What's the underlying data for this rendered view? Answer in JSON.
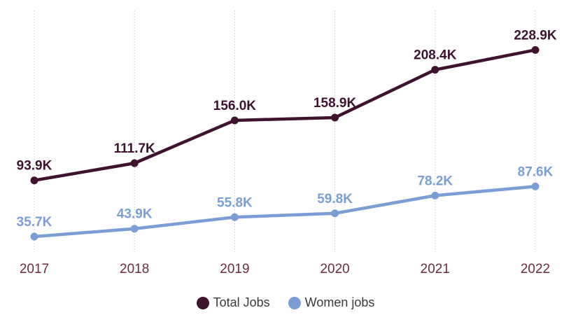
{
  "chart_data": {
    "type": "line",
    "title": "",
    "xlabel": "",
    "ylabel": "",
    "categories": [
      "2017",
      "2018",
      "2019",
      "2020",
      "2021",
      "2022"
    ],
    "ylim": [
      0,
      250000
    ],
    "grid": "vertical dotted lines at each category",
    "legend_position": "bottom-center",
    "series": [
      {
        "name": "Total Jobs",
        "color": "#3f1230",
        "values": [
          93900,
          111700,
          156000,
          158900,
          208400,
          228900
        ],
        "labels": [
          "93.9K",
          "111.7K",
          "156.0K",
          "158.9K",
          "208.4K",
          "228.9K"
        ]
      },
      {
        "name": "Women jobs",
        "color": "#7b9fd4",
        "values": [
          35700,
          43900,
          55800,
          59800,
          78200,
          87600
        ],
        "labels": [
          "35.7K",
          "43.9K",
          "55.8K",
          "59.8K",
          "78.2K",
          "87.6K"
        ]
      }
    ]
  }
}
